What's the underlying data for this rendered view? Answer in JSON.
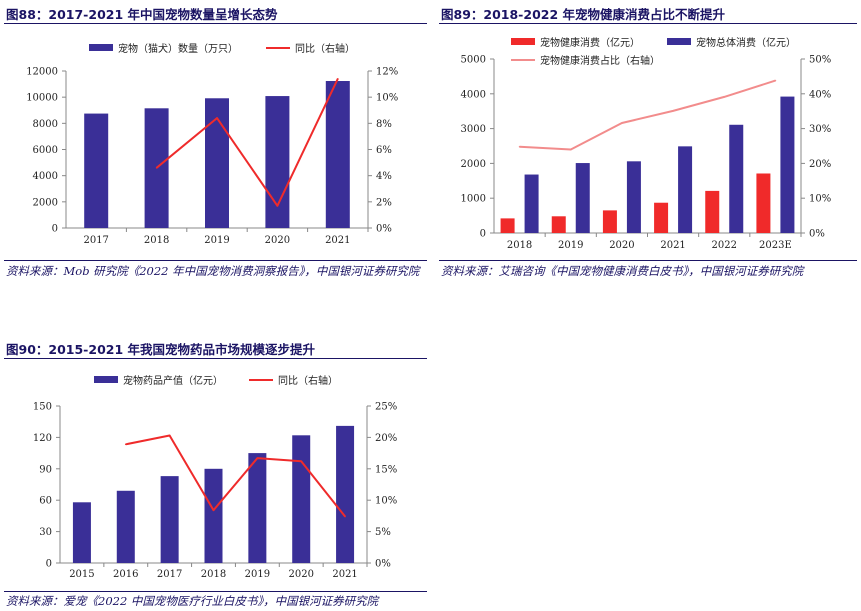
{
  "charts": [
    {
      "title": "图88：2017-2021 年中国宠物数量呈增长态势",
      "source": "资料来源：Mob 研究院《2022 年中国宠物消费洞察报告》，中国银河证券研究院",
      "legend": [
        "宠物（猫犬）数量（万只）",
        "同比（右轴）"
      ]
    },
    {
      "title": "图89：2018-2022 年宠物健康消费占比不断提升",
      "source": "资料来源：艾瑞咨询《中国宠物健康消费白皮书》，中国银河证券研究院",
      "legend": [
        "宠物健康消费（亿元）",
        "宠物总体消费（亿元）",
        "宠物健康消费占比（右轴）"
      ]
    },
    {
      "title": "图90：2015-2021 年我国宠物药品市场规模逐步提升",
      "source": "资料来源：爱宠《2022 中国宠物医疗行业白皮书》，中国银河证券研究院",
      "legend": [
        "宠物药品产值（亿元）",
        "同比（右轴）"
      ]
    }
  ],
  "colors": {
    "bar_navy": "#3a2f97",
    "bar_red": "#f02a2a",
    "line_red": "#ef2b2b",
    "line_pink": "#f28c8c",
    "title_navy": "#1b1464"
  },
  "chart_data": [
    {
      "type": "bar",
      "categories": [
        "2017",
        "2018",
        "2019",
        "2020",
        "2021"
      ],
      "series": [
        {
          "name": "宠物（猫犬）数量（万只）",
          "type": "bar",
          "axis": "left",
          "values": [
            8746,
            9149,
            9915,
            10084,
            11235
          ]
        },
        {
          "name": "同比（右轴）",
          "type": "line",
          "axis": "right",
          "values": [
            null,
            4.6,
            8.4,
            1.7,
            11.4
          ]
        }
      ],
      "ylim": [
        0,
        12000
      ],
      "yticks": [
        "0",
        "2000",
        "4000",
        "6000",
        "8000",
        "10000",
        "12000"
      ],
      "y2lim": [
        0,
        12
      ],
      "y2ticks": [
        "0%",
        "2%",
        "4%",
        "6%",
        "8%",
        "10%",
        "12%"
      ],
      "legend_position": "top",
      "grid": false
    },
    {
      "type": "bar",
      "categories": [
        "2018",
        "2019",
        "2020",
        "2021",
        "2022",
        "2023E"
      ],
      "series": [
        {
          "name": "宠物健康消费（亿元）",
          "type": "bar",
          "axis": "left",
          "values": [
            420,
            480,
            650,
            870,
            1210,
            1710
          ]
        },
        {
          "name": "宠物总体消费（亿元）",
          "type": "bar",
          "axis": "left",
          "values": [
            1680,
            2010,
            2060,
            2490,
            3110,
            3920
          ]
        },
        {
          "name": "宠物健康消费占比（右轴）",
          "type": "line",
          "axis": "right",
          "values": [
            24.8,
            24.0,
            31.6,
            35.1,
            39.1,
            43.8
          ]
        }
      ],
      "ylim": [
        0,
        5000
      ],
      "yticks": [
        "0",
        "1000",
        "2000",
        "3000",
        "4000",
        "5000"
      ],
      "y2lim": [
        0,
        50
      ],
      "y2ticks": [
        "0%",
        "10%",
        "20%",
        "30%",
        "40%",
        "50%"
      ],
      "legend_position": "top",
      "grid": false
    },
    {
      "type": "bar",
      "categories": [
        "2015",
        "2016",
        "2017",
        "2018",
        "2019",
        "2020",
        "2021"
      ],
      "series": [
        {
          "name": "宠物药品产值（亿元）",
          "type": "bar",
          "axis": "left",
          "values": [
            58,
            69,
            83,
            90,
            105,
            122,
            131
          ]
        },
        {
          "name": "同比（右轴）",
          "type": "line",
          "axis": "right",
          "values": [
            null,
            18.9,
            20.3,
            8.4,
            16.7,
            16.2,
            7.4
          ]
        }
      ],
      "ylim": [
        0,
        150
      ],
      "yticks": [
        "0",
        "30",
        "60",
        "90",
        "120",
        "150"
      ],
      "y2lim": [
        0,
        25
      ],
      "y2ticks": [
        "0%",
        "5%",
        "10%",
        "15%",
        "20%",
        "25%"
      ],
      "legend_position": "top",
      "grid": false
    }
  ]
}
